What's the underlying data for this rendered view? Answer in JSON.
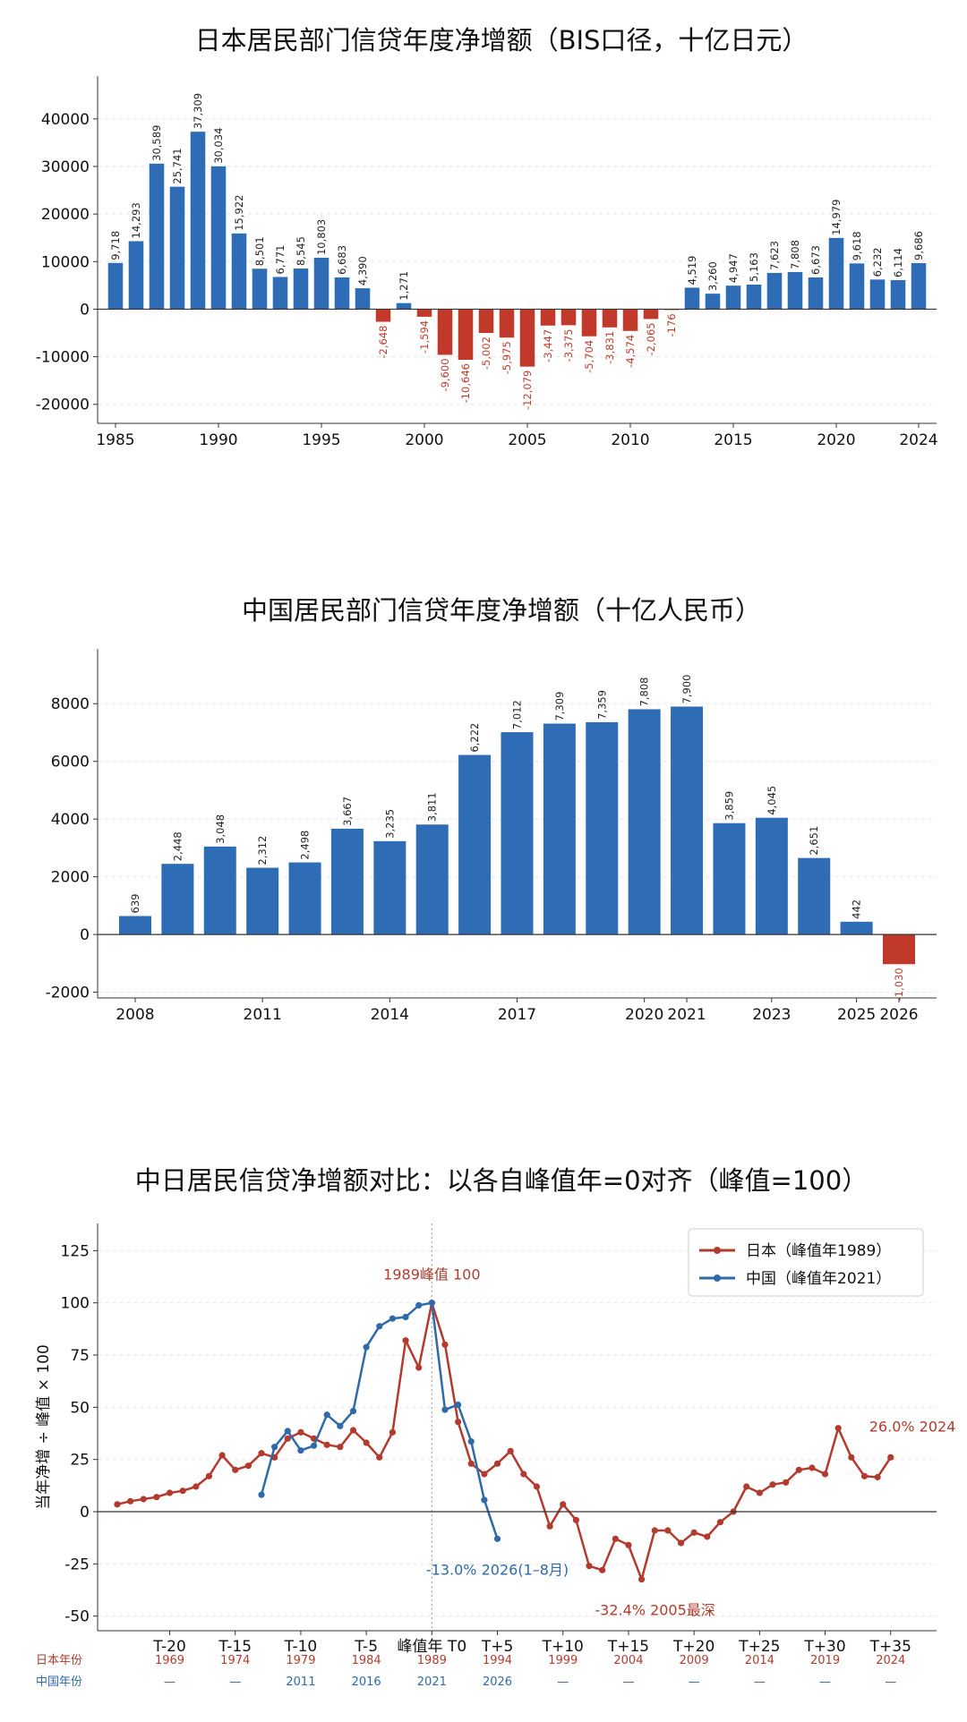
{
  "colors": {
    "positive": "#2e6db5",
    "negative": "#c0392b",
    "japan": "#b33a2e",
    "china": "#2e6aa8"
  },
  "chart_data": [
    {
      "type": "bar",
      "title": "日本居民部门信贷年度净增额（BIS口径，十亿日元）",
      "xlabel": "",
      "ylabel": "",
      "ylim": [
        -24000,
        49000
      ],
      "yticks": [
        "40000",
        "30000",
        "20000",
        "10000",
        "0",
        "-10000",
        "-20000"
      ],
      "ytick_values": [
        40000,
        30000,
        20000,
        10000,
        0,
        -10000,
        -20000
      ],
      "xticks": [
        "1985",
        "1990",
        "1995",
        "2000",
        "2005",
        "2010",
        "2015",
        "2020",
        "2024"
      ],
      "xtick_values": [
        1985,
        1990,
        1995,
        2000,
        2005,
        2010,
        2015,
        2020,
        2024
      ],
      "categories": [
        1985,
        1986,
        1987,
        1988,
        1989,
        1990,
        1991,
        1992,
        1993,
        1994,
        1995,
        1996,
        1997,
        1998,
        1999,
        2000,
        2001,
        2002,
        2003,
        2004,
        2005,
        2006,
        2007,
        2008,
        2009,
        2010,
        2011,
        2012,
        2013,
        2014,
        2015,
        2016,
        2017,
        2018,
        2019,
        2020,
        2021,
        2022,
        2023,
        2024
      ],
      "values": [
        9718,
        14293,
        30589,
        25741,
        37309,
        30034,
        15922,
        8501,
        6771,
        8545,
        10803,
        6683,
        4390,
        -2648,
        1271,
        -1594,
        -9600,
        -10646,
        -5002,
        -5975,
        -12079,
        -3447,
        -3375,
        -5704,
        -3831,
        -4574,
        -2065,
        -176,
        4519,
        3260,
        4947,
        5163,
        7623,
        7808,
        6673,
        14979,
        9618,
        6232,
        6114,
        9686
      ],
      "labels": [
        "9,718",
        "14,293",
        "30,589",
        "25,741",
        "37,309",
        "30,034",
        "15,922",
        "8,501",
        "6,771",
        "8,545",
        "10,803",
        "6,683",
        "4,390",
        "-2,648",
        "1,271",
        "-1,594",
        "-9,600",
        "-10,646",
        "-5,002",
        "-5,975",
        "-12,079",
        "-3,447",
        "-3,375",
        "-5,704",
        "-3,831",
        "-4,574",
        "-2,065",
        "-176",
        "4,519",
        "3,260",
        "4,947",
        "5,163",
        "7,623",
        "7,808",
        "6,673",
        "14,979",
        "9,618",
        "6,232",
        "6,114",
        "9,686"
      ],
      "grid": true
    },
    {
      "type": "bar",
      "title": "中国居民部门信贷年度净增额（十亿人民币）",
      "xlabel": "",
      "ylabel": "",
      "ylim": [
        -2200,
        9900
      ],
      "yticks": [
        "8000",
        "6000",
        "4000",
        "2000",
        "0",
        "-2000"
      ],
      "ytick_values": [
        8000,
        6000,
        4000,
        2000,
        0,
        -2000
      ],
      "xticks": [
        "2008",
        "2011",
        "2014",
        "2017",
        "2020",
        "2021",
        "2023",
        "2025",
        "2026"
      ],
      "xtick_values": [
        2008,
        2011,
        2014,
        2017,
        2020,
        2021,
        2023,
        2025,
        2026
      ],
      "categories": [
        2008,
        2009,
        2010,
        2011,
        2012,
        2013,
        2014,
        2015,
        2016,
        2017,
        2018,
        2019,
        2020,
        2021,
        2022,
        2023,
        2024,
        2025,
        2026
      ],
      "values": [
        639,
        2448,
        3048,
        2312,
        2498,
        3667,
        3235,
        3811,
        6222,
        7012,
        7309,
        7359,
        7808,
        7900,
        3859,
        4045,
        2651,
        442,
        -1030
      ],
      "labels": [
        "639",
        "2,448",
        "3,048",
        "2,312",
        "2,498",
        "3,667",
        "3,235",
        "3,811",
        "6,222",
        "7,012",
        "7,309",
        "7,359",
        "7,808",
        "7,900",
        "3,859",
        "4,045",
        "2,651",
        "442",
        "-1,030"
      ],
      "grid": true
    },
    {
      "type": "line",
      "title": "中日居民信贷净增额对比：以各自峰值年=0对齐（峰值=100）",
      "xlabel": "",
      "ylabel": "当年净增 ÷ 峰值 × 100",
      "xlim": [
        -25.5,
        38.5
      ],
      "ylim": [
        -57,
        138
      ],
      "yticks": [
        "125",
        "100",
        "75",
        "50",
        "25",
        "0",
        "-25",
        "-50"
      ],
      "ytick_values": [
        125,
        100,
        75,
        50,
        25,
        0,
        -25,
        -50
      ],
      "xticks": [
        "T-20",
        "T-15",
        "T-10",
        "T-5",
        "峰值年 T0",
        "T+5",
        "T+10",
        "T+15",
        "T+20",
        "T+25",
        "T+30",
        "T+35"
      ],
      "xtick_values": [
        -20,
        -15,
        -10,
        -5,
        0,
        5,
        10,
        15,
        20,
        25,
        30,
        35
      ],
      "row_labels": {
        "japan": "日本年份",
        "china": "中国年份"
      },
      "japan_years": [
        "1969",
        "1974",
        "1979",
        "1984",
        "1989",
        "1994",
        "1999",
        "2004",
        "2009",
        "2014",
        "2019",
        "2024"
      ],
      "china_years": [
        "—",
        "—",
        "2011",
        "2016",
        "2021",
        "2026",
        "—",
        "—",
        "—",
        "—",
        "—",
        "—"
      ],
      "legend_position": "top-right",
      "series": [
        {
          "name": "日本（峰值年1989）",
          "x": [
            -24,
            -23,
            -22,
            -21,
            -20,
            -19,
            -18,
            -17,
            -16,
            -15,
            -14,
            -13,
            -12,
            -11,
            -10,
            -9,
            -8,
            -7,
            -6,
            -5,
            -4,
            -3,
            -2,
            -1,
            0,
            1,
            2,
            3,
            4,
            5,
            6,
            7,
            8,
            9,
            10,
            11,
            12,
            13,
            14,
            15,
            16,
            17,
            18,
            19,
            20,
            21,
            22,
            23,
            24,
            25,
            26,
            27,
            28,
            29,
            30,
            31,
            32,
            33,
            34,
            35
          ],
          "y": [
            3.5,
            5,
            6,
            7,
            9,
            10,
            12,
            17,
            27,
            20,
            22,
            28,
            26,
            35,
            38,
            35,
            32,
            31,
            39,
            33,
            26,
            38,
            82,
            69,
            100,
            80,
            43,
            23,
            18,
            23,
            29,
            18,
            12,
            -7,
            3.5,
            -4,
            -26,
            -28,
            -13,
            -16,
            -32.4,
            -9,
            -9,
            -15,
            -10,
            -12,
            -5,
            0,
            12,
            9,
            13,
            14,
            20,
            21,
            18,
            40,
            26,
            17,
            16.5,
            26
          ]
        },
        {
          "name": "中国（峰值年2021）",
          "x": [
            -13,
            -12,
            -11,
            -10,
            -9,
            -8,
            -7,
            -6,
            -5,
            -4,
            -3,
            -2,
            -1,
            0,
            1,
            2,
            3,
            4,
            5
          ],
          "y": [
            8.1,
            31,
            38.6,
            29.3,
            31.6,
            46.4,
            41,
            48.2,
            78.8,
            88.8,
            92.5,
            93.2,
            98.8,
            100,
            48.8,
            51.2,
            33.6,
            5.6,
            -13
          ]
        }
      ],
      "annotations": [
        {
          "text": "1989峰值 100",
          "x": 0,
          "y": 100,
          "series": "japan"
        },
        {
          "text": "26.0%  2024",
          "x": 35,
          "y": 26,
          "series": "japan"
        },
        {
          "text": "-13.0%  2026(1–8月)",
          "x": 5,
          "y": -13,
          "series": "china"
        },
        {
          "text": "-32.4%  2005最深",
          "x": 16,
          "y": -32.4,
          "series": "japan"
        }
      ],
      "grid": true
    }
  ]
}
